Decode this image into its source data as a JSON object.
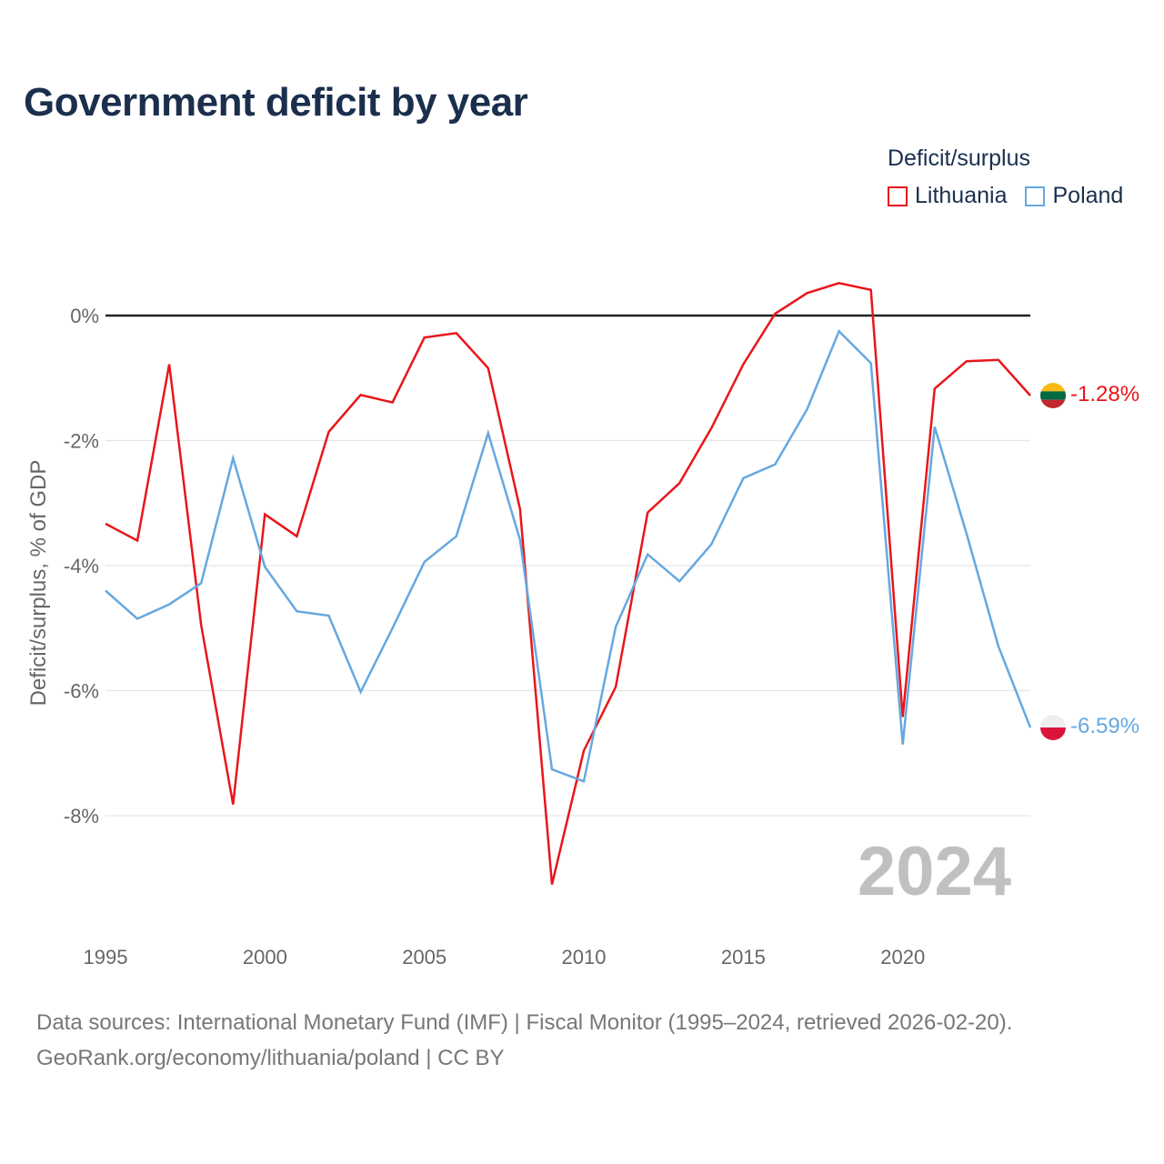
{
  "title": "Government deficit by year",
  "legend": {
    "title": "Deficit/surplus",
    "items": [
      {
        "label": "Lithuania",
        "color": "#e8161b"
      },
      {
        "label": "Poland",
        "color": "#66a8e0"
      }
    ]
  },
  "year_label": "2024",
  "footer": {
    "line1": "Data sources: International Monetary Fund (IMF) | Fiscal Monitor (1995–2024, retrieved 2026-02-20).",
    "line2": "GeoRank.org/economy/lithuania/poland | CC BY"
  },
  "chart_data": {
    "type": "line",
    "title": "Government deficit by year",
    "xlabel": "",
    "ylabel": "Deficit/surplus, % of GDP",
    "xlim": [
      1995,
      2024
    ],
    "ylim": [
      -9.5,
      0.9
    ],
    "x_ticks": [
      1995,
      2000,
      2005,
      2010,
      2015,
      2020
    ],
    "x_tick_labels": [
      "1995",
      "2000",
      "2005",
      "2010",
      "2015",
      "2020"
    ],
    "y_ticks": [
      0,
      -2,
      -4,
      -6,
      -8
    ],
    "y_tick_labels": [
      "0%",
      "-2%",
      "-4%",
      "-6%",
      "-8%"
    ],
    "grid": true,
    "x": [
      1995,
      1996,
      1997,
      1998,
      1999,
      2000,
      2001,
      2002,
      2003,
      2004,
      2005,
      2006,
      2007,
      2008,
      2009,
      2010,
      2011,
      2012,
      2013,
      2014,
      2015,
      2016,
      2017,
      2018,
      2019,
      2020,
      2021,
      2022,
      2023,
      2024
    ],
    "series": [
      {
        "name": "Lithuania",
        "color": "#e8161b",
        "values": [
          -3.33,
          -3.6,
          -0.78,
          -4.95,
          -7.82,
          -3.18,
          -3.53,
          -1.86,
          -1.27,
          -1.39,
          -0.35,
          -0.28,
          -0.84,
          -3.1,
          -9.1,
          -6.96,
          -5.94,
          -3.15,
          -2.68,
          -1.8,
          -0.78,
          0.03,
          0.36,
          0.52,
          0.41,
          -6.42,
          -1.17,
          -0.73,
          -0.71,
          -1.28
        ],
        "end_label": "-1.28%"
      },
      {
        "name": "Poland",
        "color": "#66a8e0",
        "values": [
          -4.4,
          -4.85,
          -4.62,
          -4.28,
          -2.28,
          -4.02,
          -4.73,
          -4.8,
          -6.02,
          -5.0,
          -3.94,
          -3.53,
          -1.88,
          -3.59,
          -7.26,
          -7.45,
          -4.98,
          -3.82,
          -4.25,
          -3.66,
          -2.6,
          -2.38,
          -1.5,
          -0.25,
          -0.76,
          -6.86,
          -1.78,
          -3.49,
          -5.29,
          -6.59
        ],
        "end_label": "-6.59%"
      }
    ]
  }
}
